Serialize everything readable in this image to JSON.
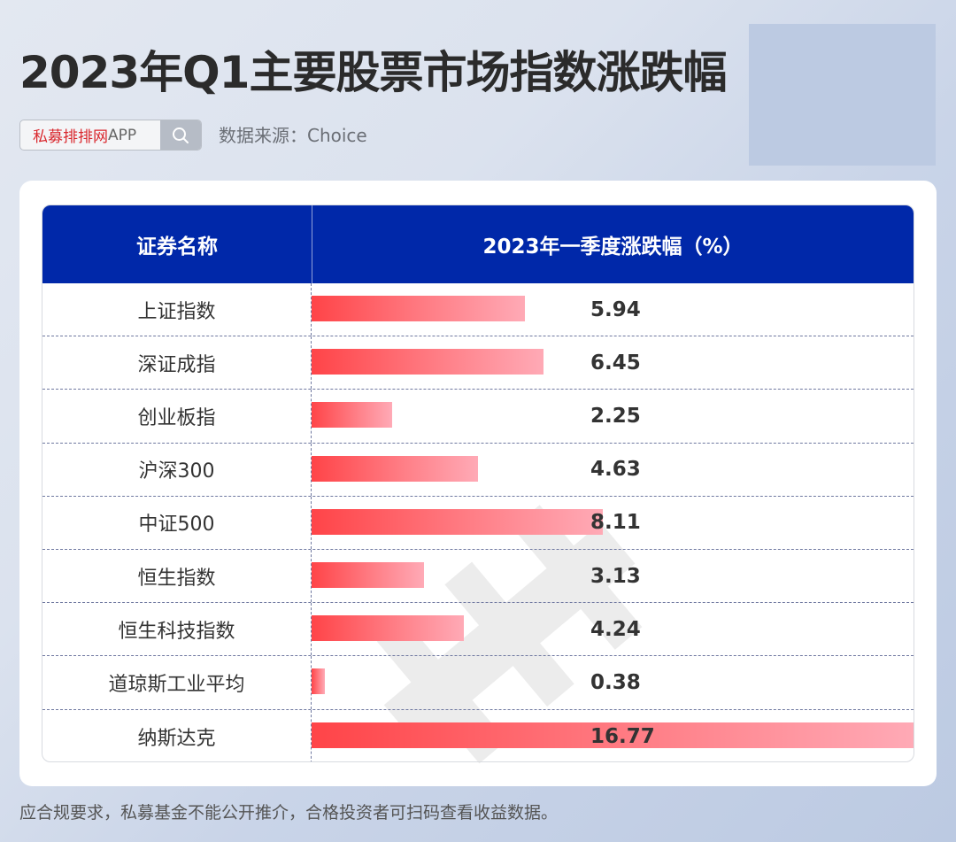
{
  "header": {
    "title": "2023年Q1主要股票市场指数涨跌幅",
    "search_brand": "私募排排网",
    "search_suffix": "APP",
    "search_icon": "search-icon",
    "source": "数据来源：Choice"
  },
  "table": {
    "col_name": "证券名称",
    "col_value": "2023年一季度涨跌幅（%）",
    "rows": [
      {
        "name": "上证指数",
        "value": "5.94"
      },
      {
        "name": "深证成指",
        "value": "6.45"
      },
      {
        "name": "创业板指",
        "value": "2.25"
      },
      {
        "name": "沪深300",
        "value": "4.63"
      },
      {
        "name": "中证500",
        "value": "8.11"
      },
      {
        "name": "恒生指数",
        "value": "3.13"
      },
      {
        "name": "恒生科技指数",
        "value": "4.24"
      },
      {
        "name": "道琼斯工业平均",
        "value": "0.38"
      },
      {
        "name": "纳斯达克",
        "value": "16.77"
      }
    ]
  },
  "footer": {
    "disclaimer": "应合规要求，私募基金不能公开推介，合格投资者可扫码查看收益数据。"
  },
  "colors": {
    "header_bg": "#0028a9",
    "bar_start": "#ff4448",
    "bar_end": "#ffaab6",
    "brand_red": "#d9262c"
  },
  "chart_data": {
    "type": "bar",
    "orientation": "horizontal",
    "title": "2023年Q1主要股票市场指数涨跌幅",
    "xlabel": "2023年一季度涨跌幅（%）",
    "ylabel": "证券名称",
    "categories": [
      "上证指数",
      "深证成指",
      "创业板指",
      "沪深300",
      "中证500",
      "恒生指数",
      "恒生科技指数",
      "道琼斯工业平均",
      "纳斯达克"
    ],
    "values": [
      5.94,
      6.45,
      2.25,
      4.63,
      8.11,
      3.13,
      4.24,
      0.38,
      16.77
    ],
    "xlim": [
      0,
      16.77
    ],
    "grid": false,
    "legend": "none",
    "source": "Choice"
  }
}
